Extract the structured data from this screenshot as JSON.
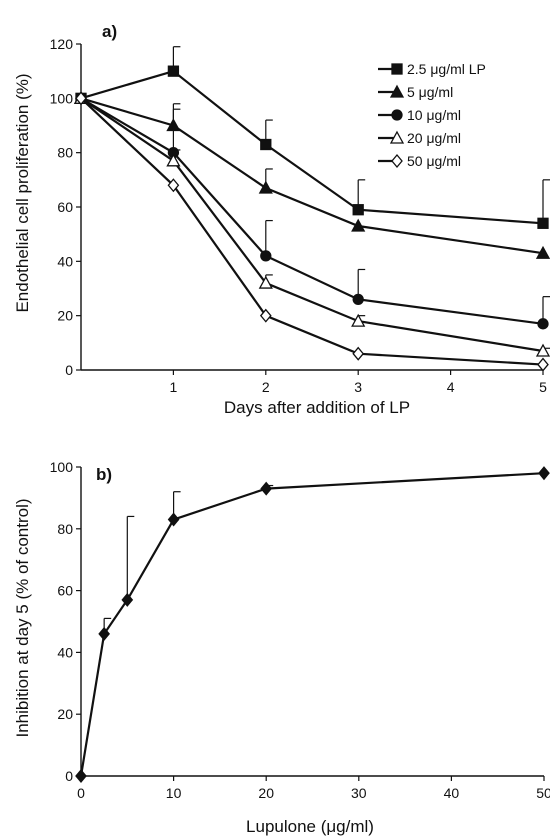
{
  "colors": {
    "ink": "#111111",
    "background": "#ffffff"
  },
  "chart_data": [
    {
      "type": "line",
      "panel_label": "a)",
      "xlabel": "Days after addition of LP",
      "ylabel": "Endothelial cell proliferation (%)",
      "xlim": [
        0,
        5
      ],
      "ylim": [
        0,
        120
      ],
      "xticks": [
        1,
        2,
        3,
        4,
        5
      ],
      "yticks": [
        0,
        20,
        40,
        60,
        80,
        100,
        120
      ],
      "grid": false,
      "legend_position": "top-right",
      "series": [
        {
          "name": "2.5 μg/ml LP",
          "marker": "square-filled-icon",
          "x": [
            0,
            1,
            2,
            3,
            5
          ],
          "values": [
            100,
            110,
            83,
            59,
            54
          ],
          "error": [
            0,
            9,
            9,
            11,
            16
          ]
        },
        {
          "name": "5 μg/ml",
          "marker": "triangle-filled-icon",
          "x": [
            0,
            1,
            2,
            3,
            5
          ],
          "values": [
            100,
            90,
            67,
            53,
            43
          ],
          "error": [
            0,
            8,
            7,
            0,
            0
          ]
        },
        {
          "name": "10 μg/ml",
          "marker": "circle-filled-icon",
          "x": [
            0,
            1,
            2,
            3,
            5
          ],
          "values": [
            100,
            80,
            42,
            26,
            17
          ],
          "error": [
            0,
            16,
            13,
            11,
            10
          ]
        },
        {
          "name": "20 μg/ml",
          "marker": "triangle-open-icon",
          "x": [
            0,
            1,
            2,
            3,
            5
          ],
          "values": [
            100,
            77,
            32,
            18,
            7
          ],
          "error": [
            0,
            4,
            3,
            2,
            1
          ]
        },
        {
          "name": "50 μg/ml",
          "marker": "diamond-open-icon",
          "x": [
            0,
            1,
            2,
            3,
            5
          ],
          "values": [
            100,
            68,
            20,
            6,
            2
          ],
          "error": [
            0,
            0,
            0,
            0,
            0
          ]
        }
      ]
    },
    {
      "type": "line",
      "panel_label": "b)",
      "xlabel": "Lupulone (μg/ml)",
      "ylabel": "Inhibition at day 5 (% of control)",
      "xlim": [
        0,
        50
      ],
      "ylim": [
        0,
        100
      ],
      "xticks": [
        0,
        10,
        20,
        30,
        40,
        50
      ],
      "yticks": [
        0,
        20,
        40,
        60,
        80,
        100
      ],
      "grid": false,
      "series": [
        {
          "marker": "diamond-filled-icon",
          "x": [
            0,
            2.5,
            5,
            10,
            20,
            50
          ],
          "values": [
            0,
            46,
            57,
            83,
            93,
            98
          ],
          "error": [
            0,
            5,
            27,
            9,
            1,
            0
          ]
        }
      ]
    }
  ]
}
